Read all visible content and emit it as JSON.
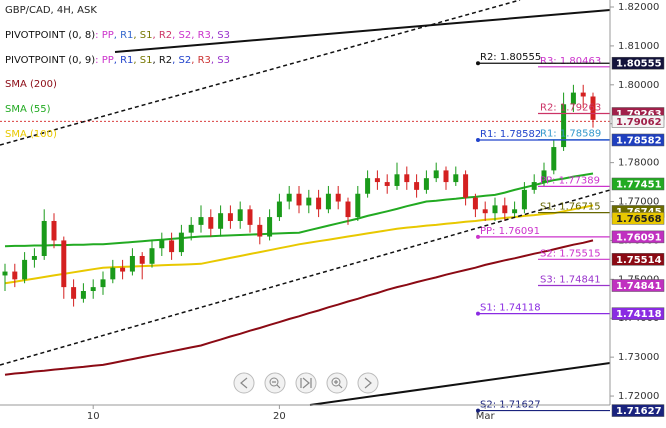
{
  "chart_data": {
    "type": "candlestick",
    "title": "GBP/CAD, 4H, ASK",
    "categories": [
      null,
      null,
      null,
      null,
      null,
      null,
      null,
      null,
      null,
      "10",
      null,
      null,
      null,
      null,
      null,
      null,
      null,
      null,
      null,
      null,
      null,
      null,
      null,
      null,
      null,
      null,
      null,
      null,
      "20",
      null,
      null,
      null,
      null,
      null,
      null,
      null,
      null,
      null,
      null,
      null,
      null,
      null,
      null,
      null,
      null,
      null,
      null,
      null,
      null,
      "Mar",
      null,
      null,
      null,
      null,
      null,
      null,
      null,
      null,
      null,
      null,
      null
    ],
    "open": [
      1.751,
      1.752,
      1.75,
      1.755,
      1.756,
      1.765,
      1.76,
      1.748,
      1.745,
      1.747,
      1.748,
      1.75,
      1.753,
      1.752,
      1.756,
      1.754,
      1.758,
      1.76,
      1.757,
      1.762,
      1.764,
      1.766,
      1.763,
      1.767,
      1.765,
      1.768,
      1.764,
      1.761,
      1.766,
      1.77,
      1.772,
      1.769,
      1.771,
      1.768,
      1.772,
      1.77,
      1.766,
      1.772,
      1.776,
      1.775,
      1.774,
      1.777,
      1.775,
      1.773,
      1.776,
      1.778,
      1.775,
      1.777,
      1.771,
      1.768,
      1.767,
      1.769,
      1.767,
      1.768,
      1.773,
      1.775,
      1.778,
      1.784,
      1.795,
      1.798,
      1.797
    ],
    "high": [
      1.754,
      1.754,
      1.757,
      1.758,
      1.768,
      1.767,
      1.761,
      1.75,
      1.749,
      1.75,
      1.752,
      1.755,
      1.755,
      1.758,
      1.757,
      1.76,
      1.762,
      1.762,
      1.764,
      1.766,
      1.769,
      1.768,
      1.769,
      1.769,
      1.77,
      1.769,
      1.766,
      1.768,
      1.772,
      1.774,
      1.774,
      1.773,
      1.773,
      1.774,
      1.774,
      1.771,
      1.774,
      1.778,
      1.778,
      1.777,
      1.78,
      1.779,
      1.777,
      1.778,
      1.78,
      1.779,
      1.779,
      1.778,
      1.772,
      1.77,
      1.771,
      1.771,
      1.77,
      1.775,
      1.777,
      1.78,
      1.786,
      1.798,
      1.8,
      1.8,
      1.798
    ],
    "low": [
      1.747,
      1.748,
      1.749,
      1.753,
      1.755,
      1.758,
      1.745,
      1.743,
      1.744,
      1.745,
      1.746,
      1.749,
      1.75,
      1.751,
      1.75,
      1.753,
      1.756,
      1.755,
      1.756,
      1.76,
      1.762,
      1.761,
      1.761,
      1.763,
      1.763,
      1.762,
      1.759,
      1.76,
      1.765,
      1.768,
      1.767,
      1.767,
      1.766,
      1.767,
      1.768,
      1.764,
      1.765,
      1.771,
      1.773,
      1.772,
      1.773,
      1.773,
      1.771,
      1.772,
      1.775,
      1.773,
      1.774,
      1.769,
      1.766,
      1.765,
      1.765,
      1.765,
      1.766,
      1.767,
      1.772,
      1.774,
      1.777,
      1.783,
      1.793,
      1.794,
      1.789
    ],
    "close": [
      1.752,
      1.75,
      1.755,
      1.756,
      1.765,
      1.76,
      1.748,
      1.745,
      1.747,
      1.748,
      1.75,
      1.753,
      1.752,
      1.756,
      1.754,
      1.758,
      1.76,
      1.757,
      1.762,
      1.764,
      1.766,
      1.763,
      1.767,
      1.765,
      1.768,
      1.764,
      1.761,
      1.766,
      1.77,
      1.772,
      1.769,
      1.771,
      1.768,
      1.772,
      1.77,
      1.766,
      1.772,
      1.776,
      1.775,
      1.774,
      1.777,
      1.775,
      1.773,
      1.776,
      1.778,
      1.775,
      1.777,
      1.771,
      1.768,
      1.767,
      1.769,
      1.767,
      1.768,
      1.773,
      1.775,
      1.778,
      1.784,
      1.795,
      1.798,
      1.797,
      1.791
    ],
    "up_color": "#1a9a1a",
    "down_color": "#d42020",
    "series": [
      {
        "name": "SMA (200)",
        "color": "#8b0a14",
        "values": [
          1.7255,
          1.7258,
          1.726,
          1.7263,
          1.7265,
          1.7268,
          1.727,
          1.7273,
          1.7275,
          1.7278,
          1.728,
          1.7285,
          1.729,
          1.7295,
          1.73,
          1.7305,
          1.731,
          1.7315,
          1.732,
          1.7325,
          1.733,
          1.7338,
          1.7345,
          1.7353,
          1.736,
          1.7368,
          1.7375,
          1.7383,
          1.739,
          1.7398,
          1.7405,
          1.7413,
          1.742,
          1.7428,
          1.7435,
          1.7443,
          1.745,
          1.7458,
          1.7465,
          1.7473,
          1.748,
          1.7486,
          1.7493,
          1.7499,
          1.7505,
          1.7512,
          1.7518,
          1.7524,
          1.753,
          1.7537,
          1.7543,
          1.7549,
          1.7554,
          1.756,
          1.7566,
          1.7571,
          1.7577,
          1.7583,
          1.7589,
          1.7594,
          1.76
        ]
      },
      {
        "name": "SMA (55)",
        "color": "#22aa22",
        "values": [
          1.7585,
          1.7586,
          1.7586,
          1.7587,
          1.7587,
          1.7588,
          1.7588,
          1.7589,
          1.7589,
          1.759,
          1.759,
          1.7592,
          1.7594,
          1.7596,
          1.7598,
          1.76,
          1.7602,
          1.7604,
          1.7606,
          1.7608,
          1.761,
          1.7611,
          1.7612,
          1.7613,
          1.7614,
          1.7615,
          1.7616,
          1.7617,
          1.7618,
          1.7619,
          1.762,
          1.7626,
          1.7632,
          1.7638,
          1.7644,
          1.765,
          1.7656,
          1.7663,
          1.7669,
          1.7675,
          1.7681,
          1.7688,
          1.7694,
          1.77,
          1.7702,
          1.7705,
          1.7707,
          1.771,
          1.7712,
          1.7715,
          1.7717,
          1.7723,
          1.773,
          1.7736,
          1.7742,
          1.7749,
          1.7755,
          1.7759,
          1.7764,
          1.7768,
          1.7772
        ]
      },
      {
        "name": "SMA (100)",
        "color": "#e8c800",
        "values": [
          1.749,
          1.7494,
          1.7498,
          1.7502,
          1.7506,
          1.751,
          1.7514,
          1.7518,
          1.7522,
          1.7526,
          1.753,
          1.7531,
          1.7532,
          1.7533,
          1.7534,
          1.7535,
          1.7536,
          1.7537,
          1.7538,
          1.7539,
          1.754,
          1.7545,
          1.755,
          1.7555,
          1.756,
          1.7565,
          1.757,
          1.7575,
          1.758,
          1.7585,
          1.759,
          1.7594,
          1.7598,
          1.7602,
          1.7606,
          1.761,
          1.7614,
          1.7618,
          1.7622,
          1.7626,
          1.763,
          1.7633,
          1.7635,
          1.7638,
          1.764,
          1.7643,
          1.7645,
          1.7648,
          1.765,
          1.7653,
          1.7655,
          1.7658,
          1.766,
          1.7663,
          1.7665,
          1.7668,
          1.767,
          1.7675,
          1.768,
          1.7685,
          1.769
        ]
      }
    ],
    "pivots": [
      {
        "name": "PIVOTPOINT (0, 8)",
        "start": "late",
        "legend": [
          {
            "text": ": PP",
            "color": "#cc33cc"
          },
          {
            "text": ", R1",
            "color": "#3366cc"
          },
          {
            "text": ", S1",
            "color": "#777700"
          },
          {
            "text": ", R2",
            "color": "#cc3366"
          },
          {
            "text": ", S2",
            "color": "#cc33cc"
          },
          {
            "text": ", R3",
            "color": "#cc33cc"
          },
          {
            "text": ", S3",
            "color": "#9933cc"
          }
        ],
        "levels": [
          {
            "label": "R3: 1.80463",
            "value": 1.80463,
            "color": "#cc33cc"
          },
          {
            "label": "R2: 1.79263",
            "value": 1.79263,
            "color": "#cc3366"
          },
          {
            "label": "R1: 1.78589",
            "value": 1.78589,
            "color": "#3399cc"
          },
          {
            "label": "PP: 1.77389",
            "value": 1.77389,
            "color": "#cc33cc"
          },
          {
            "label": "S1: 1.76715",
            "value": 1.76715,
            "color": "#666600"
          },
          {
            "label": "S2: 1.75515",
            "value": 1.75515,
            "color": "#cc33cc"
          },
          {
            "label": "S3: 1.74841",
            "value": 1.74841,
            "color": "#9933cc"
          }
        ]
      },
      {
        "name": "PIVOTPOINT (0, 9)",
        "start": "early",
        "legend": [
          {
            "text": ": PP",
            "color": "#cc33cc"
          },
          {
            "text": ", R1",
            "color": "#2244cc"
          },
          {
            "text": ", S1",
            "color": "#777700"
          },
          {
            "text": ", R2",
            "color": "#111111"
          },
          {
            "text": ", S2",
            "color": "#2244cc"
          },
          {
            "text": ", R3",
            "color": "#cc3333"
          },
          {
            "text": ", S3",
            "color": "#9933cc"
          }
        ],
        "levels": [
          {
            "label": "R2: 1.80555",
            "value": 1.80555,
            "color": "#111111"
          },
          {
            "label": "R1: 1.78582",
            "value": 1.78582,
            "color": "#2244cc"
          },
          {
            "label": "PP: 1.76091",
            "value": 1.76091,
            "color": "#cc33cc"
          },
          {
            "label": "S1: 1.74118",
            "value": 1.74118,
            "color": "#8a2be2"
          },
          {
            "label": "S2: 1.71627",
            "value": 1.71627,
            "color": "#1a237e"
          }
        ]
      }
    ],
    "current_price": 1.79062,
    "price_labels": [
      {
        "value": 1.80555,
        "color": "#14143c",
        "text_color": "#ffffff"
      },
      {
        "value": 1.79263,
        "color": "#a0204a",
        "text_color": "#ffffff"
      },
      {
        "value": 1.79062,
        "color": "#f4f4f4",
        "text_color": "#a0204a"
      },
      {
        "value": 1.78582,
        "color": "#1f3fbf",
        "text_color": "#ffffff"
      },
      {
        "value": 1.77451,
        "color": "#22aa22",
        "text_color": "#ffffff"
      },
      {
        "value": 1.76745,
        "color": "#6b6b00",
        "text_color": "#ffffff"
      },
      {
        "value": 1.76568,
        "color": "#e8c800",
        "text_color": "#222222"
      },
      {
        "value": 1.76091,
        "color": "#c030c0",
        "text_color": "#ffffff"
      },
      {
        "value": 1.75514,
        "color": "#8b0a14",
        "text_color": "#ffffff"
      },
      {
        "value": 1.74841,
        "color": "#c030c0",
        "text_color": "#ffffff"
      },
      {
        "value": 1.74118,
        "color": "#8a2be2",
        "text_color": "#ffffff"
      },
      {
        "value": 1.71627,
        "color": "#1a237e",
        "text_color": "#ffffff"
      }
    ],
    "ylim": [
      1.7177,
      1.8218
    ],
    "yticks": [
      {
        "value": 1.72,
        "label": "1.72000"
      },
      {
        "value": 1.73,
        "label": "1.73000"
      },
      {
        "value": 1.74,
        "label": "1.74000"
      },
      {
        "value": 1.75,
        "label": "1.75000"
      },
      {
        "value": 1.76,
        "label": "1.76000"
      },
      {
        "value": 1.77,
        "label": "1.77000"
      },
      {
        "value": 1.78,
        "label": "1.78000"
      },
      {
        "value": 1.79,
        "label": "1.79000"
      },
      {
        "value": 1.8,
        "label": "1.80000"
      },
      {
        "value": 1.81,
        "label": "1.81000"
      },
      {
        "value": 1.82,
        "label": "1.82000"
      }
    ],
    "grid": false
  }
}
